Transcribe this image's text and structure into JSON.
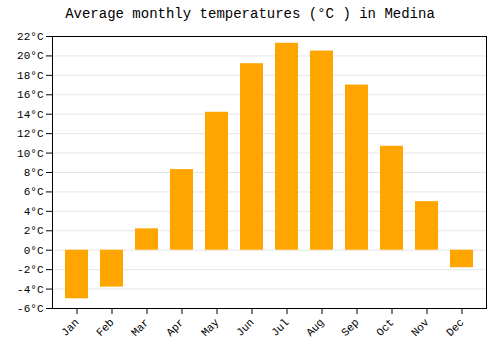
{
  "chart_data": {
    "type": "bar",
    "title": "Average monthly temperatures (°C ) in Medina",
    "categories": [
      "Jan",
      "Feb",
      "Mar",
      "Apr",
      "May",
      "Jun",
      "Jul",
      "Aug",
      "Sep",
      "Oct",
      "Nov",
      "Dec"
    ],
    "values": [
      -5.0,
      -3.8,
      2.2,
      8.3,
      14.2,
      19.2,
      21.3,
      20.5,
      17.0,
      10.7,
      5.0,
      -1.8
    ],
    "color": "#FFA500",
    "ylim": [
      -6,
      22
    ],
    "yticks": [
      {
        "value": -6,
        "label": "-6°C"
      },
      {
        "value": -4,
        "label": "-4°C"
      },
      {
        "value": -2,
        "label": "-2°C"
      },
      {
        "value": 0,
        "label": "0°C"
      },
      {
        "value": 2,
        "label": "2°C"
      },
      {
        "value": 4,
        "label": "4°C"
      },
      {
        "value": 6,
        "label": "6°C"
      },
      {
        "value": 8,
        "label": "8°C"
      },
      {
        "value": 10,
        "label": "10°C"
      },
      {
        "value": 12,
        "label": "12°C"
      },
      {
        "value": 14,
        "label": "14°C"
      },
      {
        "value": 16,
        "label": "16°C"
      },
      {
        "value": 18,
        "label": "18°C"
      },
      {
        "value": 20,
        "label": "20°C"
      },
      {
        "value": 22,
        "label": "22°C"
      }
    ],
    "grid": true
  }
}
